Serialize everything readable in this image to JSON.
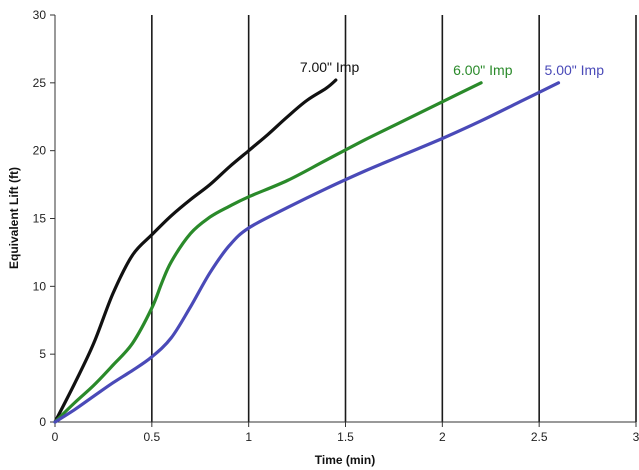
{
  "chart_data": {
    "type": "line",
    "xlabel": "Time (min)",
    "ylabel": "Equivalent Lift (ft)",
    "xlim": [
      0,
      3
    ],
    "ylim": [
      0,
      30
    ],
    "x_ticks": [
      "0",
      "0.5",
      "1",
      "1.5",
      "2",
      "2.5",
      "3"
    ],
    "y_ticks": [
      "0",
      "5",
      "10",
      "15",
      "20",
      "25",
      "30"
    ],
    "grid": "vertical",
    "series": [
      {
        "name": "7.00\" Imp",
        "color": "#111111",
        "x": [
          0,
          0.1,
          0.2,
          0.3,
          0.4,
          0.5,
          0.6,
          0.7,
          0.8,
          0.9,
          1.0,
          1.1,
          1.2,
          1.3,
          1.4,
          1.45
        ],
        "y": [
          0,
          2.8,
          5.8,
          9.5,
          12.3,
          13.8,
          15.2,
          16.4,
          17.5,
          18.8,
          20.0,
          21.2,
          22.5,
          23.7,
          24.6,
          25.2
        ]
      },
      {
        "name": "6.00\" Imp",
        "color": "#2a8a2a",
        "x": [
          0,
          0.1,
          0.2,
          0.3,
          0.4,
          0.5,
          0.55,
          0.6,
          0.7,
          0.8,
          0.9,
          1.0,
          1.2,
          1.4,
          1.6,
          1.8,
          2.0,
          2.2
        ],
        "y": [
          0,
          1.4,
          2.7,
          4.2,
          5.8,
          8.4,
          10.2,
          11.8,
          13.9,
          15.1,
          15.9,
          16.6,
          17.8,
          19.3,
          20.8,
          22.2,
          23.6,
          25.0
        ]
      },
      {
        "name": "5.00\" Imp",
        "color": "#4a4ab8",
        "x": [
          0,
          0.1,
          0.2,
          0.3,
          0.4,
          0.5,
          0.6,
          0.7,
          0.8,
          0.9,
          1.0,
          1.2,
          1.4,
          1.6,
          1.8,
          2.0,
          2.2,
          2.4,
          2.6
        ],
        "y": [
          0,
          0.9,
          1.9,
          2.9,
          3.8,
          4.8,
          6.2,
          8.5,
          11.0,
          13.0,
          14.3,
          15.8,
          17.2,
          18.5,
          19.7,
          20.9,
          22.2,
          23.6,
          25.0
        ]
      }
    ]
  }
}
